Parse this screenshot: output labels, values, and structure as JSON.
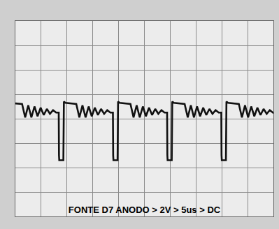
{
  "chart_data": {
    "type": "line",
    "title": "FONTE D7 ANODO > 2V > 5us > DC",
    "x": [
      0.0,
      1.3,
      1.9,
      2.5,
      3.1,
      3.7,
      4.3,
      4.9,
      5.5,
      6.1,
      6.7,
      7.3,
      7.9,
      8.4,
      8.45,
      8.5,
      9.3,
      9.4,
      9.7,
      11.8,
      12.4,
      13.0,
      13.6,
      14.2,
      14.8,
      15.4,
      16.0,
      16.6,
      17.2,
      17.8,
      18.4,
      18.9,
      18.95,
      19.0,
      19.8,
      19.9,
      20.2,
      22.3,
      22.9,
      23.5,
      24.1,
      24.7,
      25.3,
      25.9,
      26.5,
      27.1,
      27.7,
      28.3,
      28.9,
      29.4,
      29.45,
      29.5,
      30.3,
      30.4,
      30.7,
      32.8,
      33.4,
      34.0,
      34.6,
      35.2,
      35.8,
      36.4,
      37.0,
      37.6,
      38.2,
      38.8,
      39.4,
      39.9,
      39.95,
      40.0,
      40.8,
      40.9,
      41.2,
      43.3,
      43.9,
      44.5,
      45.1,
      45.7,
      46.3,
      46.9,
      47.5,
      48.1,
      48.7,
      49.3,
      49.9,
      50.0
    ],
    "values": [
      1.25,
      1.2,
      0.1,
      1.1,
      0.1,
      1.0,
      0.2,
      0.9,
      0.3,
      0.8,
      0.4,
      0.7,
      0.5,
      0.5,
      -3.0,
      -3.4,
      -3.4,
      1.4,
      1.3,
      1.2,
      0.1,
      1.1,
      0.1,
      1.0,
      0.2,
      0.9,
      0.3,
      0.8,
      0.4,
      0.7,
      0.5,
      0.5,
      -3.0,
      -3.4,
      -3.4,
      1.4,
      1.3,
      1.2,
      0.1,
      1.1,
      0.1,
      1.0,
      0.2,
      0.9,
      0.3,
      0.8,
      0.4,
      0.7,
      0.5,
      0.5,
      -3.0,
      -3.4,
      -3.4,
      1.4,
      1.3,
      1.2,
      0.1,
      1.1,
      0.1,
      1.0,
      0.2,
      0.9,
      0.3,
      0.8,
      0.4,
      0.7,
      0.5,
      0.5,
      -3.0,
      -3.4,
      -3.4,
      1.4,
      1.3,
      1.2,
      0.1,
      1.1,
      0.1,
      1.0,
      0.2,
      0.9,
      0.3,
      0.8,
      0.4,
      0.7,
      0.5,
      0.55
    ],
    "color": "#111111",
    "line_style": "solid",
    "xlim": [
      0,
      50
    ],
    "xticks": [
      0,
      5,
      10,
      15,
      20,
      25,
      30,
      35,
      40,
      45,
      50
    ],
    "ylim": [
      -8,
      8
    ],
    "yticks": [
      -8,
      -6,
      -4,
      -2,
      0,
      2,
      4,
      6,
      8
    ],
    "grid": true,
    "tick_labels": false
  }
}
